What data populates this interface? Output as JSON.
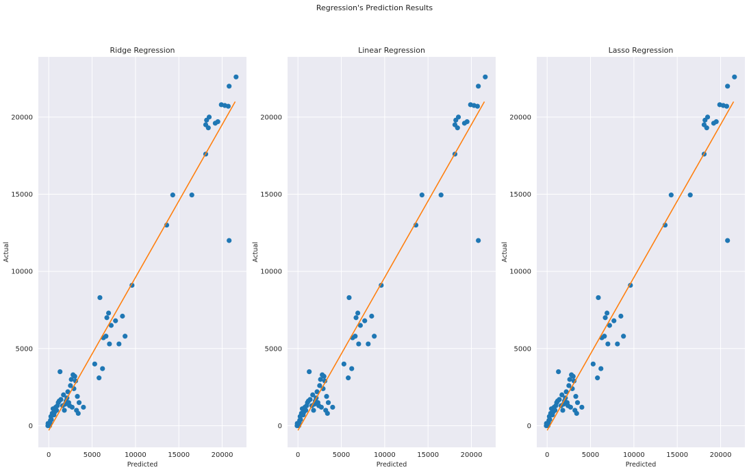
{
  "figure": {
    "suptitle": "Regression's Prediction Results"
  },
  "colors": {
    "background": "#eaeaf2",
    "grid": "#ffffff",
    "points": "#1f77b4",
    "fit_line": "#ff7f0e",
    "text": "#262626"
  },
  "chart_data": [
    {
      "type": "scatter",
      "title": "Ridge Regression",
      "xlabel": "Predicted",
      "ylabel": "Actual",
      "xlim": [
        -1200,
        22800
      ],
      "ylim": [
        -1400,
        23900
      ],
      "xticks": [
        0,
        5000,
        10000,
        15000,
        20000
      ],
      "yticks": [
        0,
        5000,
        10000,
        15000,
        20000
      ],
      "grid": true,
      "fit_line": {
        "x": [
          0,
          21500
        ],
        "y": [
          -300,
          21000
        ]
      },
      "points": [
        [
          -100,
          0
        ],
        [
          -80,
          150
        ],
        [
          0,
          50
        ],
        [
          80,
          120
        ],
        [
          100,
          0
        ],
        [
          150,
          200
        ],
        [
          200,
          350
        ],
        [
          250,
          600
        ],
        [
          300,
          400
        ],
        [
          400,
          800
        ],
        [
          500,
          1100
        ],
        [
          600,
          700
        ],
        [
          700,
          900
        ],
        [
          800,
          1200
        ],
        [
          900,
          1000
        ],
        [
          1000,
          1300
        ],
        [
          1100,
          1500
        ],
        [
          1200,
          1600
        ],
        [
          1300,
          3500
        ],
        [
          1400,
          1700
        ],
        [
          1600,
          1300
        ],
        [
          1700,
          2000
        ],
        [
          1800,
          1000
        ],
        [
          1900,
          1400
        ],
        [
          2000,
          1600
        ],
        [
          2100,
          1800
        ],
        [
          2200,
          2200
        ],
        [
          2300,
          1500
        ],
        [
          2400,
          1300
        ],
        [
          2500,
          2600
        ],
        [
          2600,
          3000
        ],
        [
          2700,
          1200
        ],
        [
          2800,
          3300
        ],
        [
          2900,
          2400
        ],
        [
          3000,
          3200
        ],
        [
          3100,
          2900
        ],
        [
          3200,
          1000
        ],
        [
          3300,
          1900
        ],
        [
          3400,
          800
        ],
        [
          3500,
          1500
        ],
        [
          4000,
          1200
        ],
        [
          5300,
          4000
        ],
        [
          5800,
          3100
        ],
        [
          5900,
          8300
        ],
        [
          6200,
          3700
        ],
        [
          6300,
          5700
        ],
        [
          6600,
          5800
        ],
        [
          6700,
          7000
        ],
        [
          6900,
          7300
        ],
        [
          7000,
          5300
        ],
        [
          7200,
          6500
        ],
        [
          7700,
          6800
        ],
        [
          8100,
          5300
        ],
        [
          8500,
          7100
        ],
        [
          8800,
          5800
        ],
        [
          9600,
          9100
        ],
        [
          13600,
          13000
        ],
        [
          14300,
          14950
        ],
        [
          16500,
          14950
        ],
        [
          18100,
          17600
        ],
        [
          18100,
          19500
        ],
        [
          18200,
          19800
        ],
        [
          18400,
          19300
        ],
        [
          18500,
          20000
        ],
        [
          19200,
          19600
        ],
        [
          19500,
          19700
        ],
        [
          19900,
          20800
        ],
        [
          20300,
          20750
        ],
        [
          20700,
          20700
        ],
        [
          20800,
          12000
        ],
        [
          20800,
          22000
        ],
        [
          21600,
          22600
        ]
      ]
    },
    {
      "type": "scatter",
      "title": "Linear Regression",
      "xlabel": "Predicted",
      "ylabel": "Actual",
      "xlim": [
        -1200,
        22800
      ],
      "ylim": [
        -1400,
        23900
      ],
      "xticks": [
        0,
        5000,
        10000,
        15000,
        20000
      ],
      "yticks": [
        0,
        5000,
        10000,
        15000,
        20000
      ],
      "grid": true,
      "fit_line": {
        "x": [
          0,
          21500
        ],
        "y": [
          -300,
          21000
        ]
      },
      "points": [
        [
          -100,
          0
        ],
        [
          -80,
          150
        ],
        [
          0,
          50
        ],
        [
          80,
          120
        ],
        [
          100,
          0
        ],
        [
          150,
          200
        ],
        [
          200,
          350
        ],
        [
          250,
          600
        ],
        [
          300,
          400
        ],
        [
          400,
          800
        ],
        [
          500,
          1100
        ],
        [
          600,
          700
        ],
        [
          700,
          900
        ],
        [
          800,
          1200
        ],
        [
          900,
          1000
        ],
        [
          1000,
          1300
        ],
        [
          1100,
          1500
        ],
        [
          1200,
          1600
        ],
        [
          1300,
          3500
        ],
        [
          1400,
          1700
        ],
        [
          1600,
          1300
        ],
        [
          1700,
          2000
        ],
        [
          1800,
          1000
        ],
        [
          1900,
          1400
        ],
        [
          2000,
          1600
        ],
        [
          2100,
          1800
        ],
        [
          2200,
          2200
        ],
        [
          2300,
          1500
        ],
        [
          2400,
          1300
        ],
        [
          2500,
          2600
        ],
        [
          2600,
          3000
        ],
        [
          2700,
          1200
        ],
        [
          2800,
          3300
        ],
        [
          2900,
          2400
        ],
        [
          3000,
          3200
        ],
        [
          3100,
          2900
        ],
        [
          3200,
          1000
        ],
        [
          3300,
          1900
        ],
        [
          3400,
          800
        ],
        [
          3500,
          1500
        ],
        [
          4000,
          1200
        ],
        [
          5300,
          4000
        ],
        [
          5800,
          3100
        ],
        [
          5900,
          8300
        ],
        [
          6200,
          3700
        ],
        [
          6300,
          5700
        ],
        [
          6600,
          5800
        ],
        [
          6700,
          7000
        ],
        [
          6900,
          7300
        ],
        [
          7000,
          5300
        ],
        [
          7200,
          6500
        ],
        [
          7700,
          6800
        ],
        [
          8100,
          5300
        ],
        [
          8500,
          7100
        ],
        [
          8800,
          5800
        ],
        [
          9600,
          9100
        ],
        [
          13600,
          13000
        ],
        [
          14300,
          14950
        ],
        [
          16500,
          14950
        ],
        [
          18100,
          17600
        ],
        [
          18100,
          19500
        ],
        [
          18200,
          19800
        ],
        [
          18400,
          19300
        ],
        [
          18500,
          20000
        ],
        [
          19200,
          19600
        ],
        [
          19500,
          19700
        ],
        [
          19900,
          20800
        ],
        [
          20300,
          20750
        ],
        [
          20700,
          20700
        ],
        [
          20800,
          12000
        ],
        [
          20800,
          22000
        ],
        [
          21600,
          22600
        ]
      ]
    },
    {
      "type": "scatter",
      "title": "Lasso Regression",
      "xlabel": "Predicted",
      "ylabel": "Actual",
      "xlim": [
        -1200,
        22800
      ],
      "ylim": [
        -1400,
        23900
      ],
      "xticks": [
        0,
        5000,
        10000,
        15000,
        20000
      ],
      "yticks": [
        0,
        5000,
        10000,
        15000,
        20000
      ],
      "grid": true,
      "fit_line": {
        "x": [
          0,
          21500
        ],
        "y": [
          -300,
          21000
        ]
      },
      "points": [
        [
          -100,
          0
        ],
        [
          -80,
          150
        ],
        [
          0,
          50
        ],
        [
          80,
          120
        ],
        [
          100,
          0
        ],
        [
          150,
          200
        ],
        [
          200,
          350
        ],
        [
          250,
          600
        ],
        [
          300,
          400
        ],
        [
          400,
          800
        ],
        [
          500,
          1100
        ],
        [
          600,
          700
        ],
        [
          700,
          900
        ],
        [
          800,
          1200
        ],
        [
          900,
          1000
        ],
        [
          1000,
          1300
        ],
        [
          1100,
          1500
        ],
        [
          1200,
          1600
        ],
        [
          1300,
          3500
        ],
        [
          1400,
          1700
        ],
        [
          1600,
          1300
        ],
        [
          1700,
          2000
        ],
        [
          1800,
          1000
        ],
        [
          1900,
          1400
        ],
        [
          2000,
          1600
        ],
        [
          2100,
          1800
        ],
        [
          2200,
          2200
        ],
        [
          2300,
          1500
        ],
        [
          2400,
          1300
        ],
        [
          2500,
          2600
        ],
        [
          2600,
          3000
        ],
        [
          2700,
          1200
        ],
        [
          2800,
          3300
        ],
        [
          2900,
          2400
        ],
        [
          3000,
          3200
        ],
        [
          3100,
          2900
        ],
        [
          3200,
          1000
        ],
        [
          3300,
          1900
        ],
        [
          3400,
          800
        ],
        [
          3500,
          1500
        ],
        [
          4000,
          1200
        ],
        [
          5300,
          4000
        ],
        [
          5800,
          3100
        ],
        [
          5900,
          8300
        ],
        [
          6200,
          3700
        ],
        [
          6300,
          5700
        ],
        [
          6600,
          5800
        ],
        [
          6700,
          7000
        ],
        [
          6900,
          7300
        ],
        [
          7000,
          5300
        ],
        [
          7200,
          6500
        ],
        [
          7700,
          6800
        ],
        [
          8100,
          5300
        ],
        [
          8500,
          7100
        ],
        [
          8800,
          5800
        ],
        [
          9600,
          9100
        ],
        [
          13600,
          13000
        ],
        [
          14300,
          14950
        ],
        [
          16500,
          14950
        ],
        [
          18100,
          17600
        ],
        [
          18100,
          19500
        ],
        [
          18200,
          19800
        ],
        [
          18400,
          19300
        ],
        [
          18500,
          20000
        ],
        [
          19200,
          19600
        ],
        [
          19500,
          19700
        ],
        [
          19900,
          20800
        ],
        [
          20300,
          20750
        ],
        [
          20700,
          20700
        ],
        [
          20800,
          12000
        ],
        [
          20800,
          22000
        ],
        [
          21600,
          22600
        ]
      ]
    }
  ]
}
